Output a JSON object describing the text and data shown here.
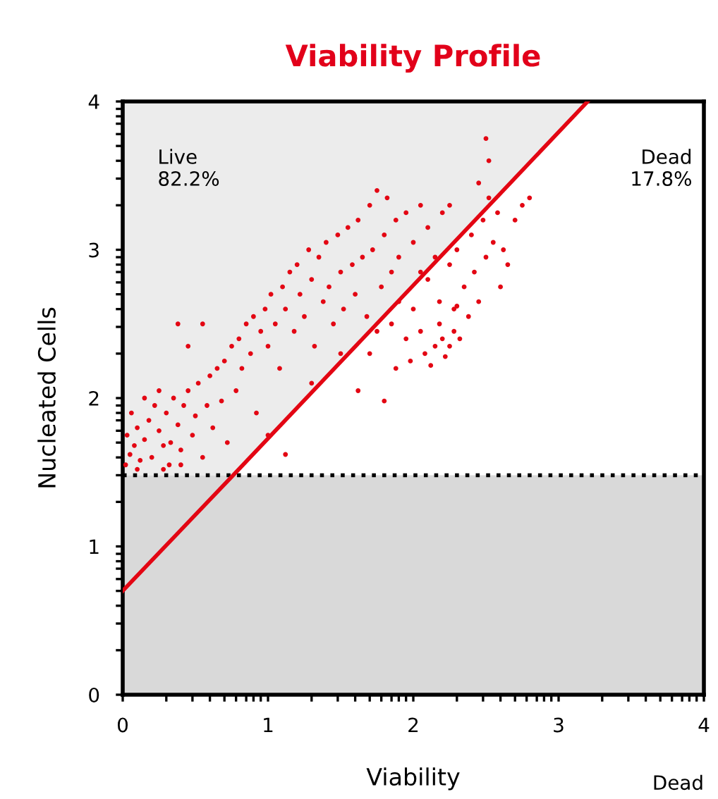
{
  "chart_data": {
    "type": "scatter",
    "title": "Viability Profile",
    "xlabel": "Viability",
    "ylabel": "Nucleated Cells",
    "xlim": [
      0,
      4
    ],
    "ylim": [
      0,
      4
    ],
    "xticks": [
      0,
      {
        "value": 0.3,
        "label": null
      },
      {
        "value": 0.48,
        "label": null
      },
      {
        "value": 0.6,
        "label": null
      },
      {
        "value": 0.7,
        "label": null
      },
      {
        "value": 0.78,
        "label": null
      },
      {
        "value": 0.85,
        "label": null
      },
      {
        "value": 0.9,
        "label": null
      },
      {
        "value": 0.95,
        "label": null
      },
      1,
      {
        "value": 1.3,
        "label": null
      },
      {
        "value": 1.48,
        "label": null
      },
      {
        "value": 1.6,
        "label": null
      },
      {
        "value": 1.7,
        "label": null
      },
      {
        "value": 1.78,
        "label": null
      },
      {
        "value": 1.85,
        "label": null
      },
      {
        "value": 1.9,
        "label": null
      },
      {
        "value": 1.95,
        "label": null
      },
      2,
      {
        "value": 2.3,
        "label": null
      },
      {
        "value": 2.48,
        "label": null
      },
      {
        "value": 2.6,
        "label": null
      },
      {
        "value": 2.7,
        "label": null
      },
      {
        "value": 2.78,
        "label": null
      },
      {
        "value": 2.85,
        "label": null
      },
      {
        "value": 2.9,
        "label": null
      },
      {
        "value": 2.95,
        "label": null
      },
      3,
      {
        "value": 3.3,
        "label": null
      },
      {
        "value": 3.48,
        "label": null
      },
      {
        "value": 3.6,
        "label": null
      },
      {
        "value": 3.7,
        "label": null
      },
      {
        "value": 3.78,
        "label": null
      },
      {
        "value": 3.85,
        "label": null
      },
      {
        "value": 3.9,
        "label": null
      },
      {
        "value": 3.95,
        "label": null
      },
      4
    ],
    "yticks": [
      0,
      {
        "value": 0.3,
        "label": null
      },
      {
        "value": 0.48,
        "label": null
      },
      {
        "value": 0.6,
        "label": null
      },
      {
        "value": 0.7,
        "label": null
      },
      {
        "value": 0.78,
        "label": null
      },
      {
        "value": 0.85,
        "label": null
      },
      {
        "value": 0.9,
        "label": null
      },
      {
        "value": 0.95,
        "label": null
      },
      1,
      {
        "value": 1.3,
        "label": null
      },
      {
        "value": 1.48,
        "label": null
      },
      {
        "value": 1.6,
        "label": null
      },
      {
        "value": 1.7,
        "label": null
      },
      {
        "value": 1.78,
        "label": null
      },
      {
        "value": 1.85,
        "label": null
      },
      {
        "value": 1.9,
        "label": null
      },
      {
        "value": 1.95,
        "label": null
      },
      2,
      {
        "value": 2.3,
        "label": null
      },
      {
        "value": 2.48,
        "label": null
      },
      {
        "value": 2.6,
        "label": null
      },
      {
        "value": 2.7,
        "label": null
      },
      {
        "value": 2.78,
        "label": null
      },
      {
        "value": 2.85,
        "label": null
      },
      {
        "value": 2.9,
        "label": null
      },
      {
        "value": 2.95,
        "label": null
      },
      3,
      {
        "value": 3.3,
        "label": null
      },
      {
        "value": 3.48,
        "label": null
      },
      {
        "value": 3.6,
        "label": null
      },
      {
        "value": 3.7,
        "label": null
      },
      {
        "value": 3.78,
        "label": null
      },
      {
        "value": 3.85,
        "label": null
      },
      {
        "value": 3.9,
        "label": null
      },
      {
        "value": 3.95,
        "label": null
      },
      4
    ],
    "grid": false,
    "marker": "circle",
    "bands": [
      {
        "axis": "y",
        "from": 0,
        "to": 1.48,
        "color": "#d9d9d9"
      }
    ],
    "ref_lines": [
      {
        "axis": "y",
        "value": 1.48,
        "color": "#000000",
        "line_style": "dotted"
      }
    ],
    "annotations": [
      "Live\n82.2%",
      "Dead\n17.8%",
      "Dead"
    ],
    "series": [
      {
        "color": "#e30613",
        "x": [
          0.02,
          0.05,
          0.03,
          0.08,
          0.1,
          0.12,
          0.15,
          0.06,
          0.18,
          0.2,
          0.22,
          0.25,
          0.28,
          0.3,
          0.32,
          0.35,
          0.38,
          0.4,
          0.42,
          0.45,
          0.48,
          0.5,
          0.52,
          0.55,
          0.58,
          0.6,
          0.15,
          0.25,
          0.33,
          0.1,
          0.28,
          0.4,
          0.62,
          0.65,
          0.68,
          0.7,
          0.72,
          0.75,
          0.78,
          0.8,
          0.82,
          0.85,
          0.88,
          0.9,
          0.92,
          0.95,
          0.98,
          1.0,
          1.02,
          1.05,
          1.08,
          1.1,
          1.12,
          1.15,
          1.18,
          1.2,
          1.22,
          1.25,
          1.28,
          1.3,
          1.32,
          1.35,
          1.38,
          1.4,
          1.42,
          1.45,
          1.48,
          1.5,
          1.52,
          1.55,
          1.58,
          1.6,
          1.62,
          1.65,
          1.68,
          1.7,
          1.72,
          1.75,
          1.78,
          1.8,
          1.82,
          1.85,
          1.88,
          1.9,
          1.95,
          2.0,
          2.05,
          2.1,
          2.15,
          2.2,
          1.12,
          0.55,
          0.45,
          0.38,
          1.0,
          1.3,
          1.5,
          1.75,
          2.25,
          2.05,
          1.62,
          1.7,
          1.8,
          1.85,
          1.9,
          1.95,
          1.98,
          2.0,
          2.05,
          2.08,
          2.1,
          2.12,
          2.15,
          2.18,
          2.2,
          2.22,
          2.25,
          2.25,
          2.28,
          2.3,
          2.3,
          2.32,
          2.35,
          2.38,
          2.4,
          2.42,
          2.45,
          2.48,
          2.5,
          2.52,
          2.55,
          2.58,
          2.6,
          2.62,
          2.65,
          2.7,
          2.75,
          2.8,
          2.52,
          2.5,
          2.45,
          1.88,
          2.18,
          2.28
        ],
        "values": [
          1.55,
          1.62,
          1.75,
          1.68,
          1.8,
          1.58,
          1.72,
          1.9,
          1.85,
          1.6,
          1.95,
          1.78,
          1.68,
          1.9,
          1.55,
          2.0,
          1.82,
          1.65,
          1.95,
          2.05,
          1.75,
          1.88,
          2.1,
          1.6,
          1.95,
          2.15,
          2.0,
          2.05,
          1.7,
          1.52,
          1.52,
          1.55,
          1.8,
          2.2,
          1.98,
          2.25,
          1.7,
          2.35,
          2.05,
          2.4,
          2.2,
          2.5,
          2.3,
          2.55,
          1.9,
          2.45,
          2.6,
          2.35,
          2.7,
          2.5,
          2.2,
          2.75,
          2.6,
          2.85,
          2.45,
          2.9,
          2.7,
          2.55,
          3.0,
          2.8,
          2.35,
          2.95,
          2.65,
          3.05,
          2.75,
          2.5,
          3.1,
          2.85,
          2.6,
          3.15,
          2.9,
          2.7,
          3.2,
          2.95,
          2.55,
          3.3,
          3.0,
          3.4,
          2.75,
          3.1,
          3.35,
          2.85,
          3.2,
          2.95,
          3.25,
          3.05,
          3.3,
          3.15,
          2.95,
          3.25,
          1.62,
          2.5,
          2.35,
          2.5,
          1.75,
          2.1,
          2.3,
          2.45,
          3.3,
          2.85,
          2.05,
          2.3,
          1.98,
          2.5,
          2.65,
          2.4,
          2.25,
          2.6,
          2.45,
          2.3,
          2.8,
          2.22,
          2.35,
          2.65,
          2.4,
          2.28,
          2.9,
          2.35,
          2.45,
          3.0,
          2.62,
          2.4,
          2.75,
          2.55,
          3.1,
          2.85,
          2.65,
          3.2,
          2.95,
          3.35,
          3.05,
          3.25,
          2.75,
          3.0,
          2.9,
          3.2,
          3.3,
          3.35,
          3.6,
          3.75,
          3.45,
          2.2,
          2.5,
          2.6
        ]
      },
      {
        "type": "line",
        "color": "#e30613",
        "marker": "none",
        "x": [
          0,
          0.76,
          3.2
        ],
        "values": [
          0.7,
          1.48,
          4
        ],
        "lower": [
          1.48,
          1.48,
          4
        ],
        "upper": [
          4,
          4,
          4
        ]
      }
    ]
  }
}
